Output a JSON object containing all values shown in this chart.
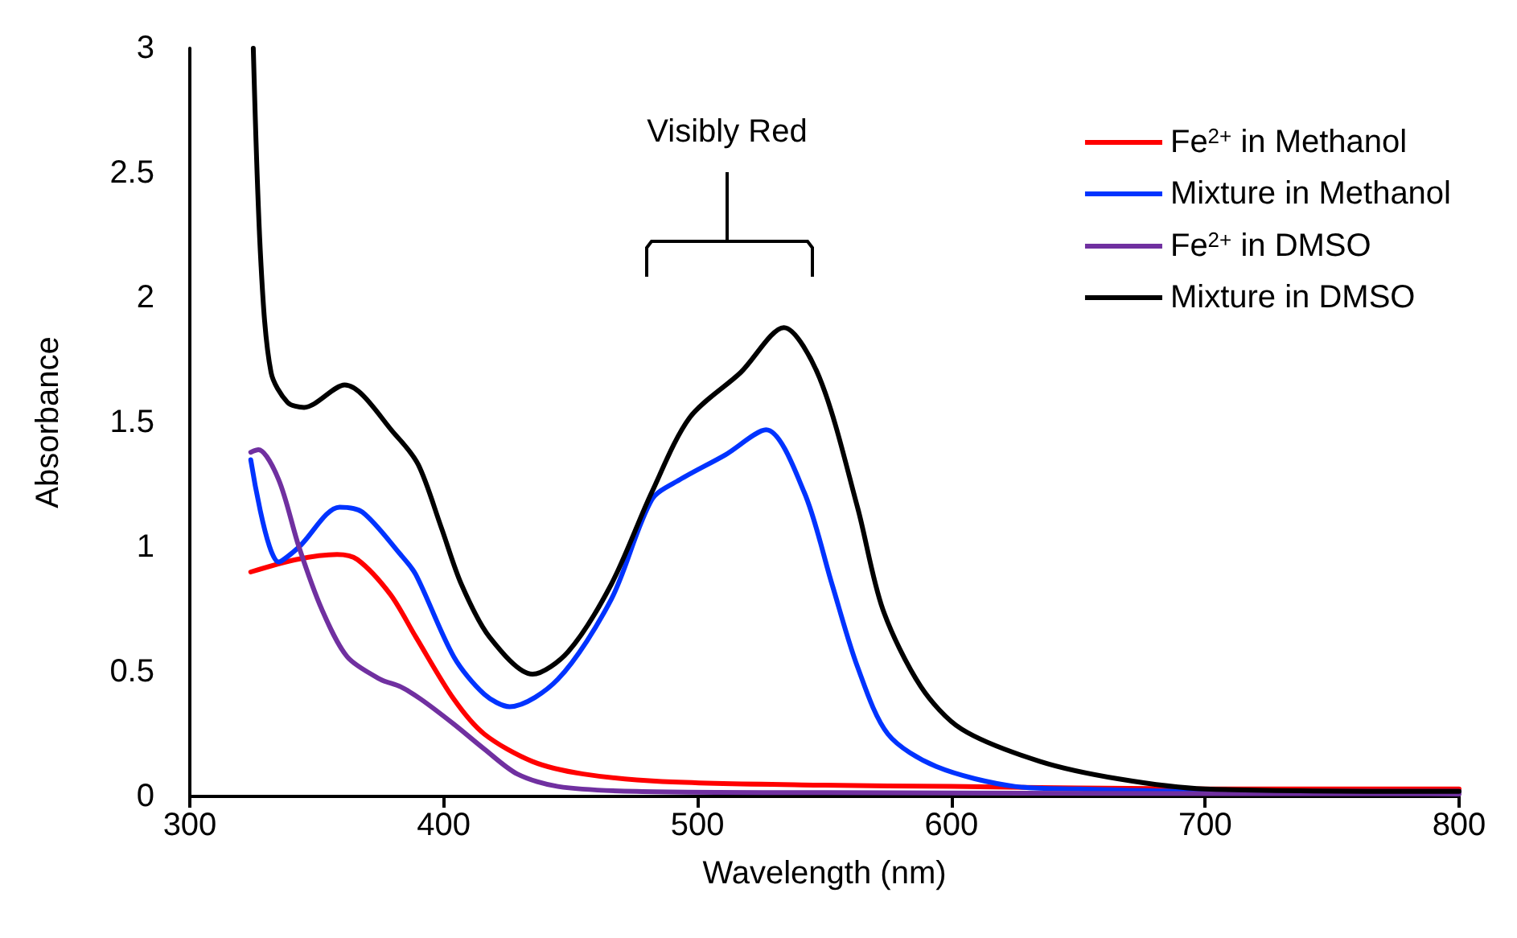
{
  "chart_data": {
    "type": "line",
    "xlabel": "Wavelength (nm)",
    "ylabel": "Absorbance",
    "xlim": [
      300,
      800
    ],
    "xticks": [
      300,
      400,
      500,
      600,
      700,
      800
    ],
    "ylim": [
      0,
      3
    ],
    "yticks": [
      0,
      0.5,
      1,
      1.5,
      2,
      2.5,
      3
    ],
    "grid": false,
    "legend": "top right",
    "line_style": "solid",
    "annotations": [
      "Visibly Red"
    ],
    "series": [
      {
        "name": "Fe$^{2+}$ in Methanol",
        "color": "#ff0000",
        "x": [
          324,
          342,
          358,
          366,
          379,
          389,
          404,
          416,
          435,
          455,
          486,
          550,
          600,
          700,
          800
        ],
        "values": [
          0.9,
          0.95,
          0.97,
          0.95,
          0.81,
          0.64,
          0.39,
          0.25,
          0.14,
          0.09,
          0.06,
          0.045,
          0.04,
          0.03,
          0.03
        ]
      },
      {
        "name": "Mixture in Methanol",
        "color": "#0033ff",
        "x": [
          324,
          335,
          343,
          359,
          368,
          383,
          389,
          404,
          416,
          426,
          445,
          466,
          482,
          493,
          511,
          527,
          542,
          553,
          563,
          575,
          594,
          625,
          650,
          700,
          800
        ],
        "values": [
          1.35,
          0.94,
          1.0,
          1.16,
          1.14,
          0.97,
          0.89,
          0.56,
          0.41,
          0.36,
          0.47,
          0.79,
          1.19,
          1.27,
          1.37,
          1.47,
          1.22,
          0.85,
          0.52,
          0.25,
          0.12,
          0.04,
          0.03,
          0.02,
          0.02
        ]
      },
      {
        "name": "Fe$^{2+}$ in DMSO",
        "color": "#7030a0",
        "x": [
          324,
          327,
          335,
          343,
          352,
          362,
          375,
          383,
          391,
          404,
          416,
          429,
          445,
          476,
          550,
          800
        ],
        "values": [
          1.38,
          1.39,
          1.27,
          1.0,
          0.75,
          0.56,
          0.47,
          0.44,
          0.39,
          0.29,
          0.19,
          0.09,
          0.04,
          0.02,
          0.015,
          0.01
        ]
      },
      {
        "name": "Mixture in DMSO",
        "color": "#000000",
        "x": [
          325,
          328,
          332,
          338.5,
          345,
          361,
          381,
          390,
          399,
          407,
          418,
          435,
          449,
          466,
          482,
          497,
          517,
          534,
          548,
          563,
          573,
          588,
          604,
          635,
          666,
          700,
          800
        ],
        "values": [
          3.0,
          2.14,
          1.7,
          1.58,
          1.56,
          1.65,
          1.45,
          1.33,
          1.08,
          0.85,
          0.64,
          0.49,
          0.58,
          0.85,
          1.22,
          1.52,
          1.7,
          1.88,
          1.68,
          1.16,
          0.75,
          0.44,
          0.27,
          0.14,
          0.07,
          0.03,
          0.02
        ]
      }
    ]
  }
}
